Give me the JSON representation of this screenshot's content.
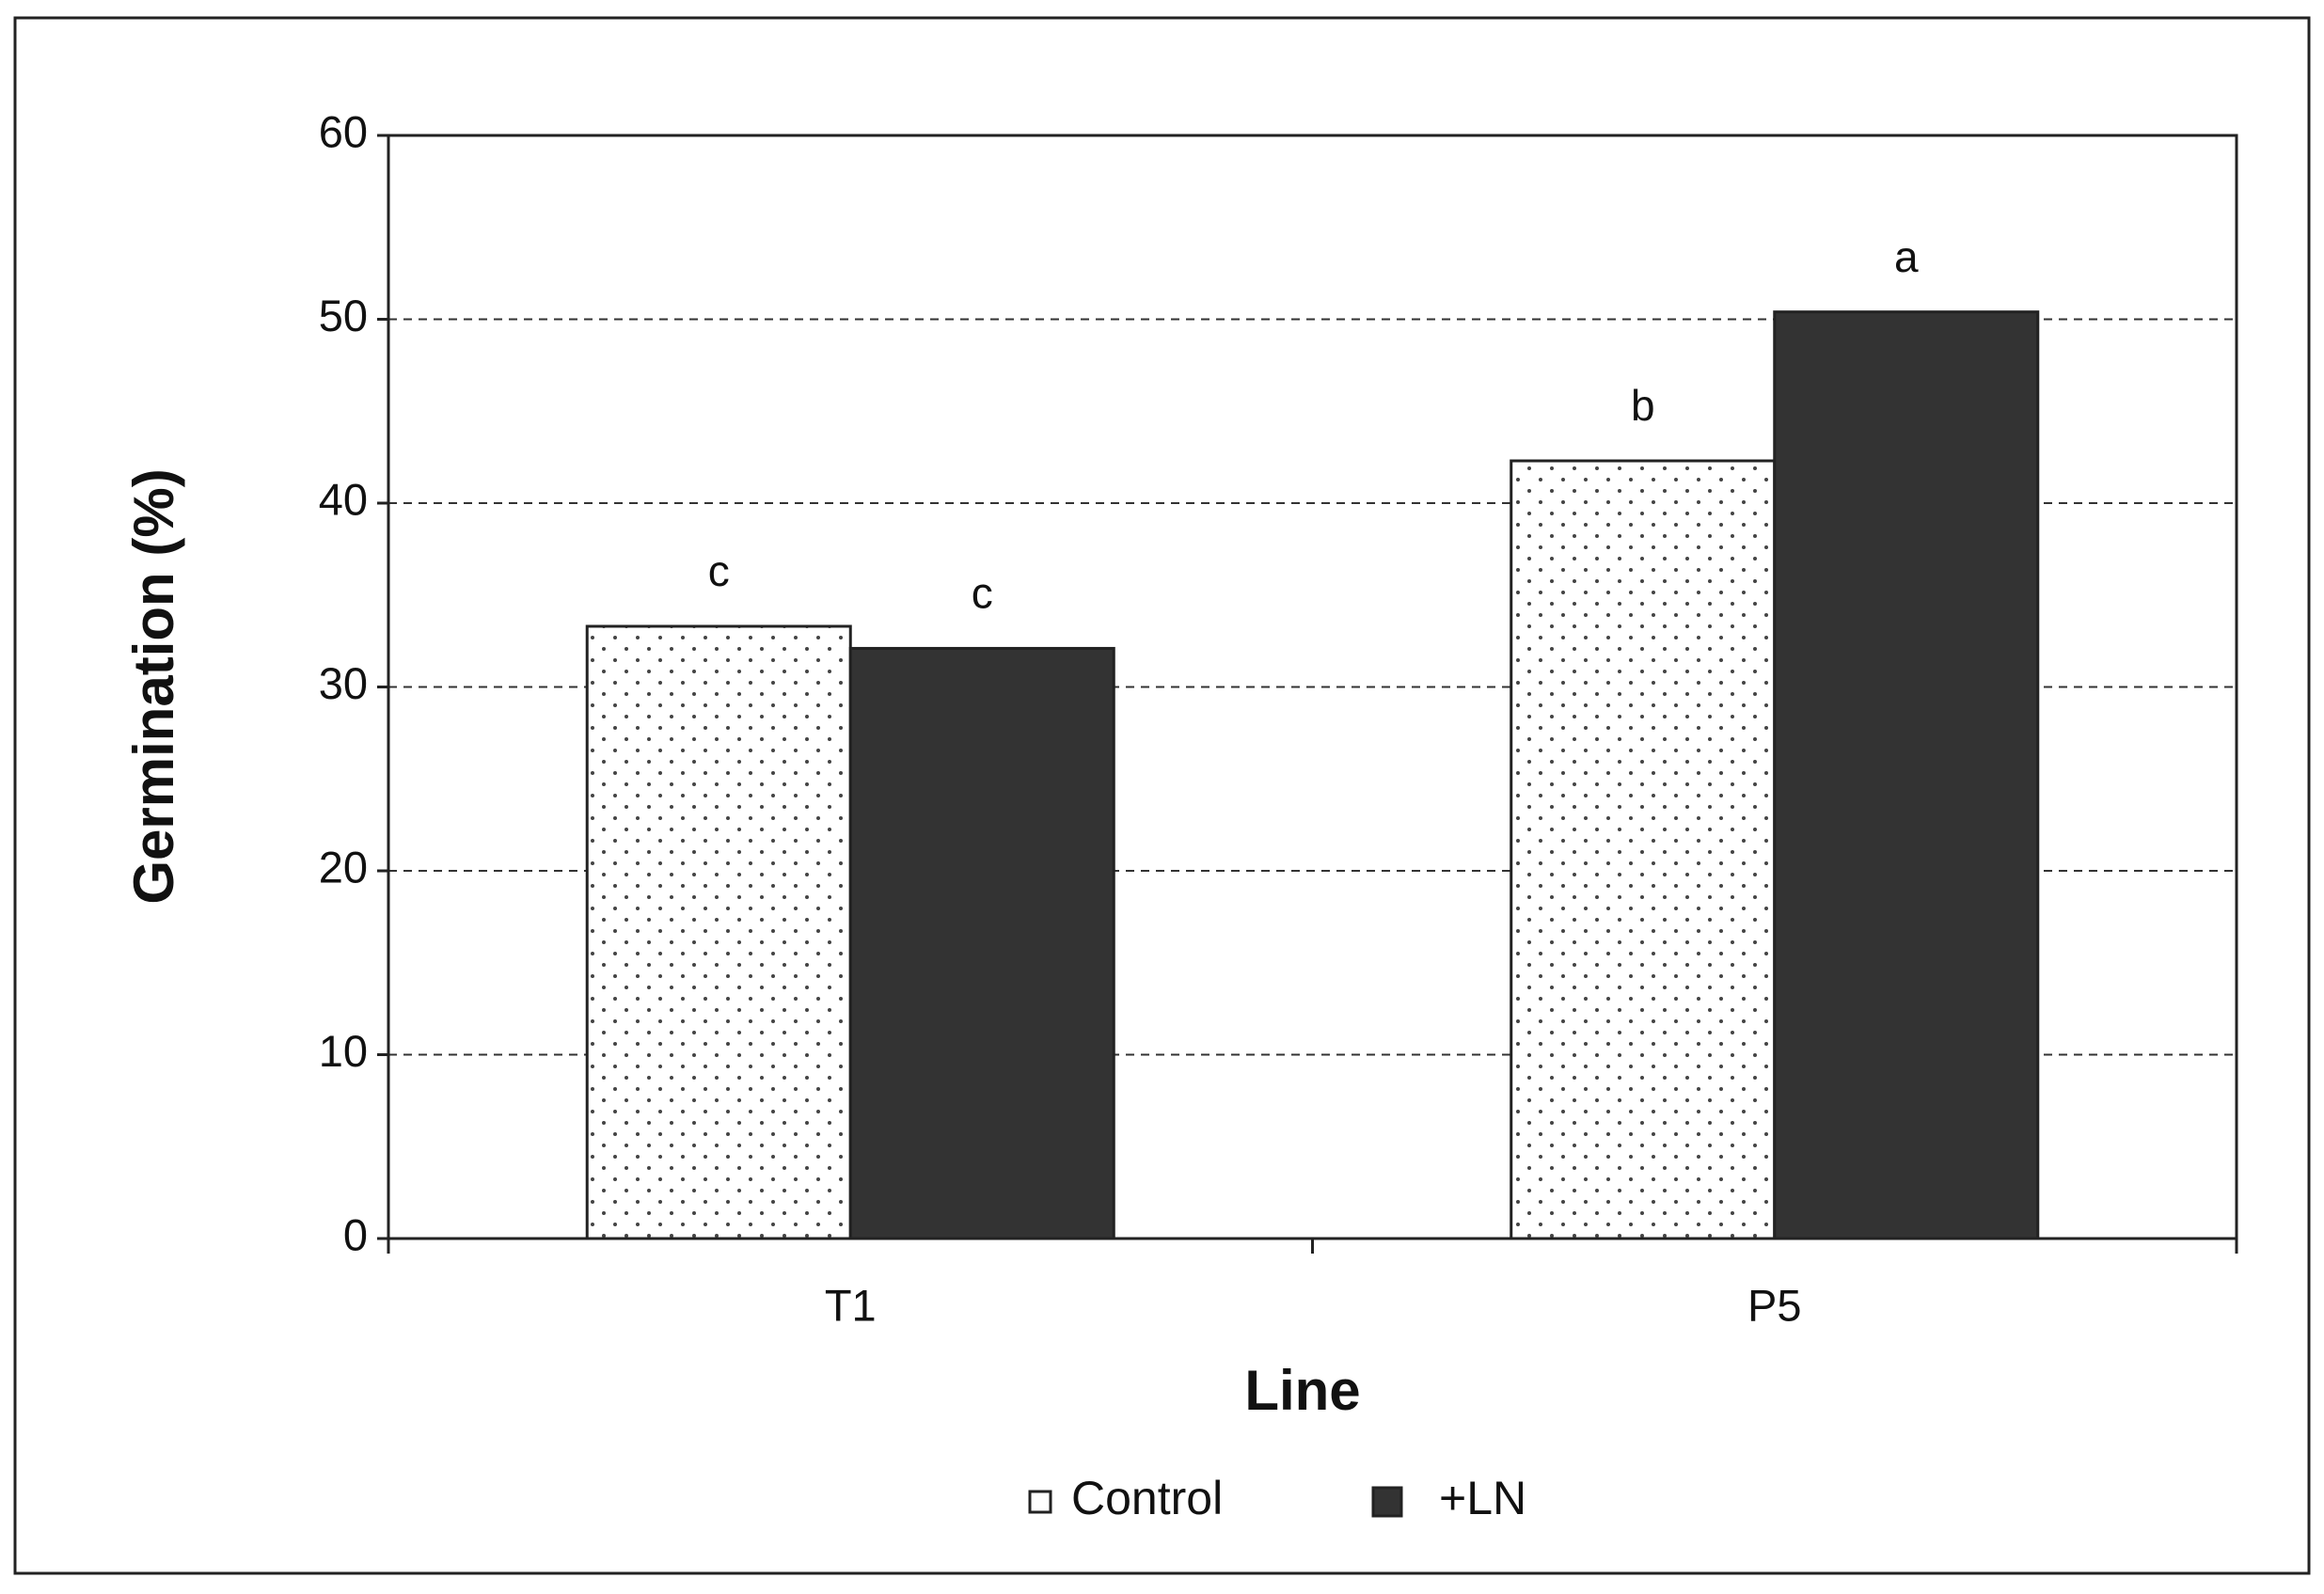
{
  "chart_data": {
    "type": "bar",
    "x_label": "Line",
    "y_label": "Germination (%)",
    "categories": [
      "T1",
      "P5"
    ],
    "series": [
      {
        "name": "Control",
        "color": "#ffffff",
        "pattern": "dots",
        "values": [
          33.3,
          42.3
        ],
        "significance_labels": [
          "c",
          "b"
        ]
      },
      {
        "name": "+LN",
        "color": "#333333",
        "values": [
          32.1,
          50.4
        ],
        "significance_labels": [
          "c",
          "a"
        ]
      }
    ],
    "ylim": [
      0,
      60
    ],
    "yticks": [
      0,
      10,
      20,
      30,
      40,
      50,
      60
    ],
    "grid": true,
    "legend": "bottom"
  }
}
